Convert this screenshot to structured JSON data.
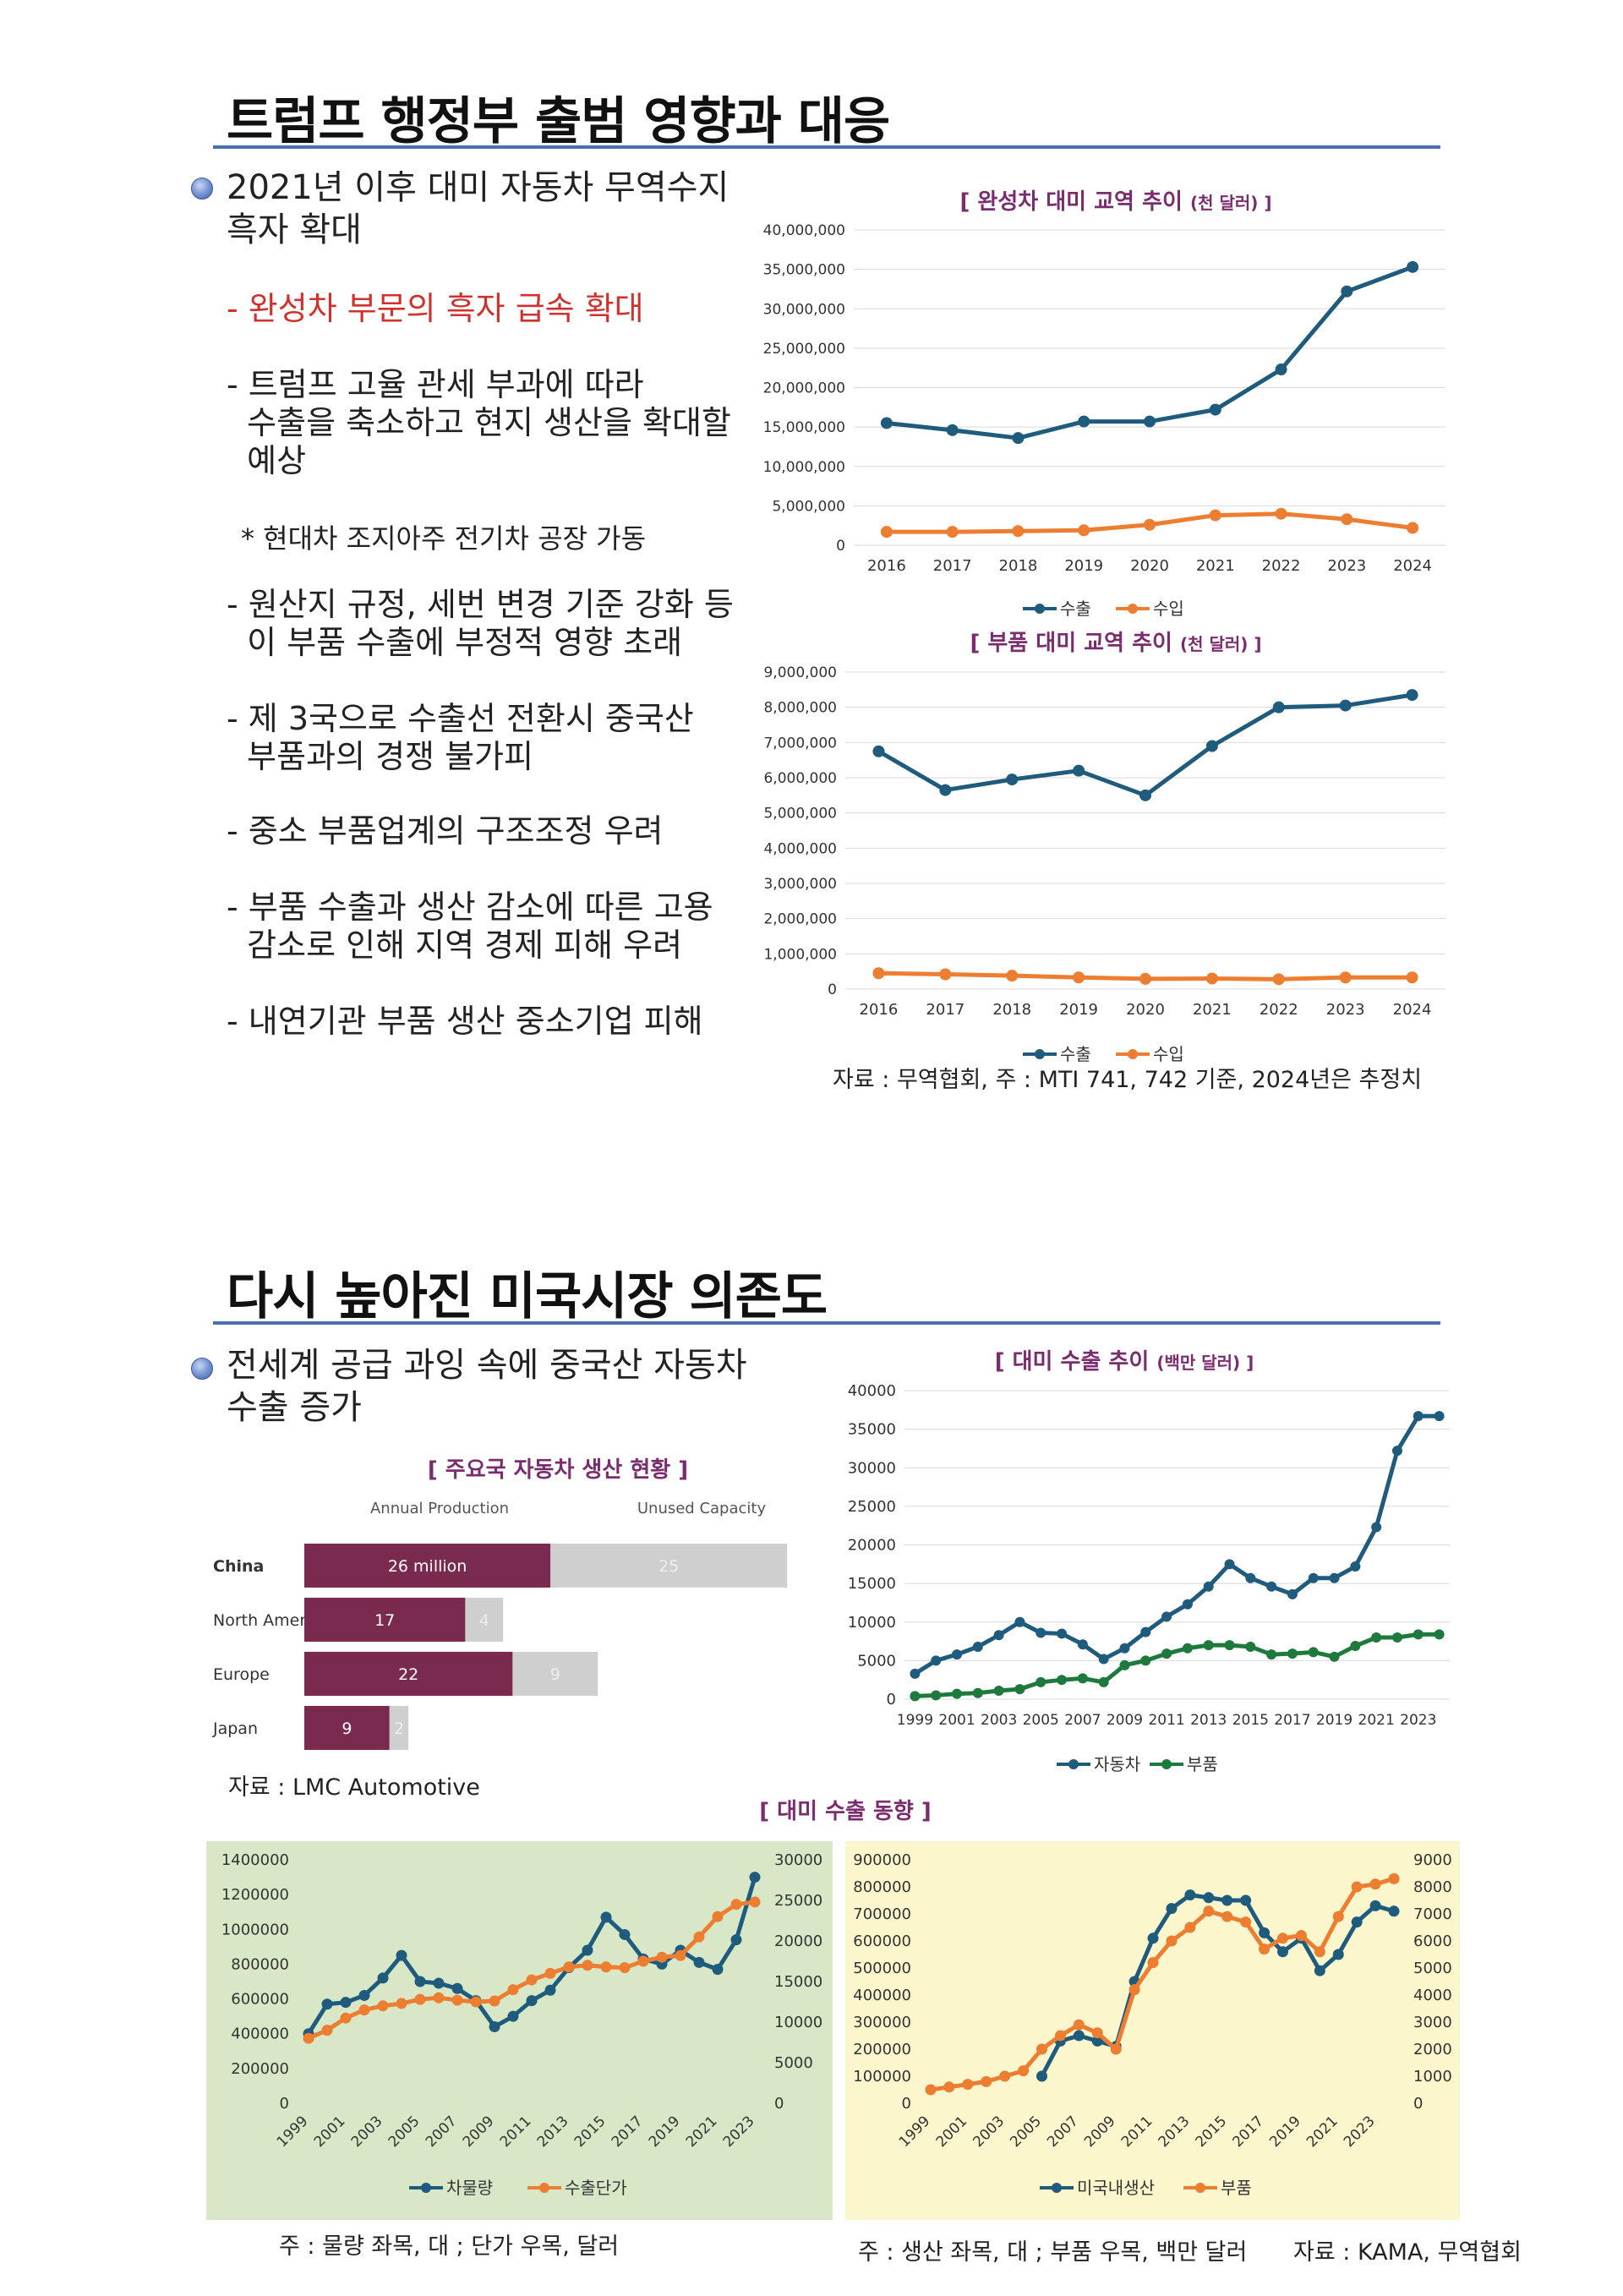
{
  "section1": {
    "title": "트럼프 행정부 출범 영향과 대응",
    "bullet_line1": "2021년 이후 대미 자동차 무역수지",
    "bullet_line2": "흑자 확대",
    "items": [
      {
        "lines": [
          "- 완성차 부문의 흑자 급속 확대"
        ],
        "highlight": true
      },
      {
        "lines": [
          "- 트럼프 고율 관세 부과에 따라",
          "  수출을 축소하고 현지 생산을 확대할",
          "  예상"
        ]
      },
      {
        "lines": [
          "* 현대차 조지아주 전기차 공장 가동"
        ]
      },
      {
        "lines": [
          "- 원산지 규정, 세번 변경 기준 강화 등",
          "  이 부품 수출에 부정적 영향 초래"
        ]
      },
      {
        "lines": [
          "- 제 3국으로 수출선 전환시 중국산",
          "  부품과의 경쟁 불가피"
        ]
      },
      {
        "lines": [
          "- 중소 부품업계의 구조조정 우려"
        ]
      },
      {
        "lines": [
          "- 부품 수출과 생산 감소에 따른 고용",
          "  감소로 인해 지역 경제 피해 우려"
        ]
      },
      {
        "lines": [
          "- 내연기관 부품 생산 중소기업 피해"
        ]
      }
    ],
    "source": "자료 : 무역협회, 주 : MTI 741, 742 기준, 2024년은 추정치"
  },
  "section2": {
    "title": "다시 높아진 미국시장 의존도",
    "bullet_line1": "전세계 공급 과잉 속에 중국산 자동차",
    "bullet_line2": "수출 증가",
    "bottom_title": "[ 대미 수출 동향 ]",
    "note_left": "주 : 물량 좌목, 대 ; 단가 우목, 달러",
    "note_right": "주 : 생산 좌목, 대 ; 부품 우목, 백만 달러",
    "source_right": "자료 : KAMA, 무역협회",
    "source_prod": "자료 : LMC Automotive"
  },
  "colors": {
    "blue": "#1f5b7d",
    "orange": "#ed7d31",
    "green": "#1e7a3c",
    "maroon": "#7a2a4f",
    "gray": "#cfcfcf"
  },
  "chart_data": [
    {
      "type": "line",
      "title": "[ 완성차 대미 교역 추이",
      "title_unit": "(천 달러) ]",
      "x": [
        "2016",
        "2017",
        "2018",
        "2019",
        "2020",
        "2021",
        "2022",
        "2023",
        "2024"
      ],
      "series": [
        {
          "name": "수출",
          "values": [
            15500000,
            14600000,
            13600000,
            15700000,
            15700000,
            17200000,
            22300000,
            32200000,
            35300000
          ]
        },
        {
          "name": "수입",
          "values": [
            1700000,
            1700000,
            1800000,
            1900000,
            2600000,
            3800000,
            4000000,
            3300000,
            2200000
          ]
        }
      ],
      "ylim": [
        0,
        40000000
      ],
      "yticks": [
        "0",
        "5,000,000",
        "10,000,000",
        "15,000,000",
        "20,000,000",
        "25,000,000",
        "30,000,000",
        "35,000,000",
        "40,000,000"
      ],
      "legend": "bottom"
    },
    {
      "type": "line",
      "title": "[ 부품 대미 교역 추이",
      "title_unit": "(천 달러) ]",
      "x": [
        "2016",
        "2017",
        "2018",
        "2019",
        "2020",
        "2021",
        "2022",
        "2023",
        "2024"
      ],
      "series": [
        {
          "name": "수출",
          "values": [
            6750000,
            5650000,
            5950000,
            6200000,
            5500000,
            6900000,
            8000000,
            8050000,
            8350000
          ]
        },
        {
          "name": "수입",
          "values": [
            450000,
            420000,
            380000,
            330000,
            290000,
            300000,
            280000,
            330000,
            330000
          ]
        }
      ],
      "ylim": [
        0,
        9000000
      ],
      "yticks": [
        "0",
        "1,000,000",
        "2,000,000",
        "3,000,000",
        "4,000,000",
        "5,000,000",
        "6,000,000",
        "7,000,000",
        "8,000,000",
        "9,000,000"
      ],
      "legend": "bottom"
    },
    {
      "type": "line",
      "title": "[ 대미 수출 추이",
      "title_unit": "(백만 달러) ]",
      "x": [
        "1999",
        "2000",
        "2001",
        "2002",
        "2003",
        "2004",
        "2005",
        "2006",
        "2007",
        "2008",
        "2009",
        "2010",
        "2011",
        "2012",
        "2013",
        "2014",
        "2015",
        "2016",
        "2017",
        "2018",
        "2019",
        "2020",
        "2021",
        "2022",
        "2023",
        "2024"
      ],
      "xtick_labels": [
        "1999",
        "2001",
        "2003",
        "2005",
        "2007",
        "2009",
        "2011",
        "2013",
        "2015",
        "2017",
        "2019",
        "2021",
        "2023"
      ],
      "series": [
        {
          "name": "자동차",
          "values": [
            3300,
            5000,
            5800,
            6800,
            8300,
            10000,
            8600,
            8500,
            7100,
            5200,
            6600,
            8700,
            10700,
            12300,
            14600,
            17500,
            15700,
            14600,
            13600,
            15700,
            15700,
            17200,
            22300,
            32200,
            36700,
            36700
          ]
        },
        {
          "name": "부품",
          "values": [
            400,
            500,
            700,
            800,
            1100,
            1300,
            2200,
            2500,
            2700,
            2200,
            4400,
            5000,
            5900,
            6600,
            7000,
            7000,
            6800,
            5800,
            5900,
            6100,
            5500,
            6900,
            8000,
            8000,
            8400,
            8400
          ]
        }
      ],
      "ylim": [
        0,
        40000
      ],
      "yticks": [
        "0",
        "5000",
        "10000",
        "15000",
        "20000",
        "25000",
        "30000",
        "35000",
        "40000"
      ],
      "legend": "bottom"
    },
    {
      "type": "bar",
      "title": "[ 주요국 자동차 생산 현황 ]",
      "header_annual": "Annual Production",
      "header_unused": "Unused Capacity",
      "categories": [
        "China",
        "North America",
        "Europe",
        "Japan"
      ],
      "series": [
        {
          "name": "Annual Production",
          "values": [
            26,
            17,
            22,
            9
          ],
          "labels": [
            "26 million",
            "17",
            "22",
            "9"
          ]
        },
        {
          "name": "Unused Capacity",
          "values": [
            25,
            4,
            9,
            2
          ],
          "labels": [
            "25",
            "4",
            "9",
            "2"
          ]
        }
      ]
    },
    {
      "type": "line",
      "x": [
        "1999",
        "2000",
        "2001",
        "2002",
        "2003",
        "2004",
        "2005",
        "2006",
        "2007",
        "2008",
        "2009",
        "2010",
        "2011",
        "2012",
        "2013",
        "2014",
        "2015",
        "2016",
        "2017",
        "2018",
        "2019",
        "2020",
        "2021",
        "2022",
        "2023"
      ],
      "xtick_labels": [
        "1999",
        "2001",
        "2003",
        "2005",
        "2007",
        "2009",
        "2011",
        "2013",
        "2015",
        "2017",
        "2019",
        "2021",
        "2023"
      ],
      "series": [
        {
          "name": "차물량",
          "axis": "left",
          "values": [
            400000,
            570000,
            580000,
            620000,
            720000,
            850000,
            700000,
            690000,
            660000,
            590000,
            440000,
            500000,
            590000,
            650000,
            780000,
            880000,
            1070000,
            970000,
            830000,
            800000,
            880000,
            810000,
            770000,
            940000,
            1300000
          ]
        },
        {
          "name": "수출단가",
          "axis": "right",
          "values": [
            8000,
            9000,
            10500,
            11500,
            12000,
            12300,
            12800,
            13000,
            12700,
            12500,
            12600,
            14000,
            15200,
            16000,
            16800,
            17000,
            16800,
            16700,
            17500,
            18000,
            18200,
            20500,
            23000,
            24500,
            24800
          ]
        }
      ],
      "ylim_left": [
        0,
        1400000
      ],
      "yticks_left": [
        "0",
        "200000",
        "400000",
        "600000",
        "800000",
        "1000000",
        "1200000",
        "1400000"
      ],
      "ylim_right": [
        0,
        30000
      ],
      "yticks_right": [
        "0",
        "5000",
        "10000",
        "15000",
        "20000",
        "25000",
        "30000"
      ],
      "legend": "bottom"
    },
    {
      "type": "line",
      "x": [
        "1999",
        "2000",
        "2001",
        "2002",
        "2003",
        "2004",
        "2005",
        "2006",
        "2007",
        "2008",
        "2009",
        "2010",
        "2011",
        "2012",
        "2013",
        "2014",
        "2015",
        "2016",
        "2017",
        "2018",
        "2019",
        "2020",
        "2021",
        "2022",
        "2023",
        "2024"
      ],
      "xtick_labels": [
        "1999",
        "2001",
        "2003",
        "2005",
        "2007",
        "2009",
        "2011",
        "2013",
        "2015",
        "2017",
        "2019",
        "2021",
        "2023"
      ],
      "series": [
        {
          "name": "미국내생산",
          "axis": "left",
          "values": [
            null,
            null,
            null,
            null,
            null,
            null,
            100000,
            230000,
            250000,
            230000,
            210000,
            450000,
            610000,
            720000,
            770000,
            760000,
            750000,
            750000,
            630000,
            560000,
            610000,
            490000,
            550000,
            670000,
            730000,
            710000
          ]
        },
        {
          "name": "부품",
          "axis": "right",
          "values": [
            500,
            600,
            700,
            800,
            1000,
            1200,
            2000,
            2500,
            2900,
            2600,
            2000,
            4200,
            5200,
            6000,
            6500,
            7100,
            6900,
            6700,
            5700,
            6100,
            6200,
            5600,
            6900,
            8000,
            8100,
            8300
          ]
        }
      ],
      "ylim_left": [
        0,
        900000
      ],
      "yticks_left": [
        "0",
        "100000",
        "200000",
        "300000",
        "400000",
        "500000",
        "600000",
        "700000",
        "800000",
        "900000"
      ],
      "ylim_right": [
        0,
        9000
      ],
      "yticks_right": [
        "0",
        "1000",
        "2000",
        "3000",
        "4000",
        "5000",
        "6000",
        "7000",
        "8000",
        "9000"
      ],
      "legend": "bottom"
    }
  ]
}
